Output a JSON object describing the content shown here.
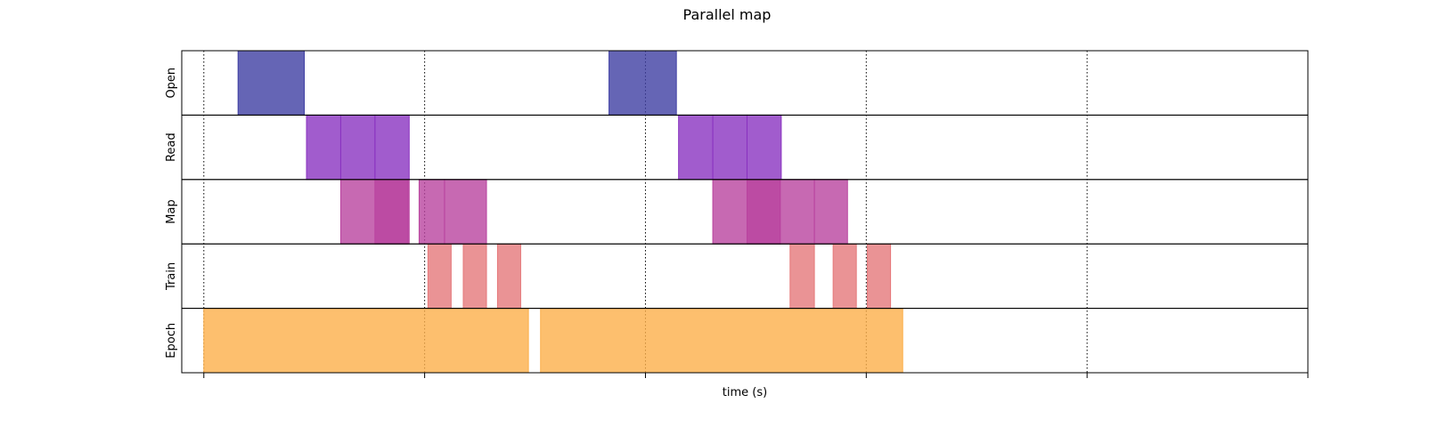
{
  "chart_data": {
    "type": "bar",
    "subtype": "timeline",
    "title": "Parallel map",
    "xlabel": "time (s)",
    "ylabel": "",
    "xlim": [
      -0.1,
      5.0
    ],
    "xticks": [
      0,
      1,
      2,
      3,
      4,
      5
    ],
    "xtick_labels": [],
    "grid": "vertical dotted",
    "lanes": [
      "Open",
      "Read",
      "Map",
      "Train",
      "Epoch"
    ],
    "colors": {
      "Open": "#3f3fa3",
      "Read": "#8a33c0",
      "Map": "#b9439f",
      "Train": "#e5787a",
      "Epoch": "#fcaf4a"
    },
    "series": [
      {
        "lane": "Open",
        "intervals": [
          [
            0.155,
            0.455
          ],
          [
            1.835,
            2.14
          ]
        ]
      },
      {
        "lane": "Read",
        "intervals": [
          [
            0.465,
            0.62
          ],
          [
            0.62,
            0.775
          ],
          [
            0.775,
            0.93
          ],
          [
            2.15,
            2.305
          ],
          [
            2.305,
            2.46
          ],
          [
            2.46,
            2.615
          ]
        ]
      },
      {
        "lane": "Map",
        "intervals": [
          [
            0.62,
            0.93
          ],
          [
            0.775,
            0.925
          ],
          [
            0.975,
            1.09
          ],
          [
            1.09,
            1.28
          ],
          [
            2.305,
            2.61
          ],
          [
            2.46,
            2.61
          ],
          [
            2.61,
            2.765
          ],
          [
            2.765,
            2.915
          ]
        ]
      },
      {
        "lane": "Train",
        "intervals": [
          [
            1.015,
            1.12
          ],
          [
            1.175,
            1.28
          ],
          [
            1.33,
            1.435
          ],
          [
            2.655,
            2.765
          ],
          [
            2.85,
            2.955
          ],
          [
            3.005,
            3.11
          ]
        ]
      },
      {
        "lane": "Epoch",
        "intervals": [
          [
            0.0,
            1.47
          ],
          [
            1.525,
            3.165
          ]
        ]
      }
    ]
  }
}
